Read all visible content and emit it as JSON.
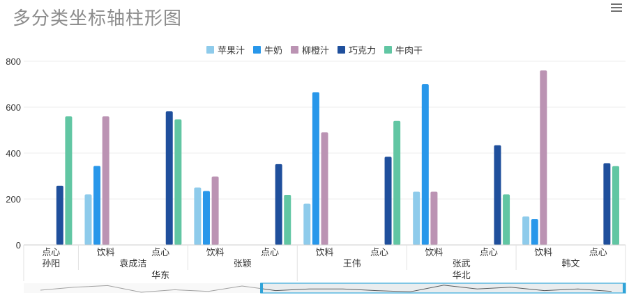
{
  "title": "多分类坐标轴柱形图",
  "menu_icon": "hamburger-menu-icon",
  "chart_data": {
    "type": "bar",
    "title": "多分类坐标轴柱形图",
    "ylim": [
      0,
      800
    ],
    "yticks": [
      0,
      200,
      400,
      600,
      800
    ],
    "grid": true,
    "legend_position": "top-center",
    "categories": [
      {
        "region": "华东",
        "person": "孙阳",
        "item": "点心"
      },
      {
        "region": "华东",
        "person": "袁成洁",
        "item": "饮料"
      },
      {
        "region": "华东",
        "person": "袁成洁",
        "item": "点心"
      },
      {
        "region": "华东",
        "person": "张颖",
        "item": "饮料"
      },
      {
        "region": "华东",
        "person": "张颖",
        "item": "点心"
      },
      {
        "region": "华北",
        "person": "王伟",
        "item": "饮料"
      },
      {
        "region": "华北",
        "person": "王伟",
        "item": "点心"
      },
      {
        "region": "华北",
        "person": "张武",
        "item": "饮料"
      },
      {
        "region": "华北",
        "person": "张武",
        "item": "点心"
      },
      {
        "region": "华北",
        "person": "韩文",
        "item": "饮料"
      },
      {
        "region": "华北",
        "person": "韩文",
        "item": "点心"
      }
    ],
    "series": [
      {
        "name": "苹果汁",
        "color": "#8ecbeb",
        "values": [
          0,
          220,
          0,
          250,
          0,
          180,
          0,
          232,
          0,
          124,
          0
        ]
      },
      {
        "name": "牛奶",
        "color": "#2897ea",
        "values": [
          0,
          344,
          0,
          235,
          0,
          665,
          0,
          700,
          0,
          112,
          0
        ]
      },
      {
        "name": "柳橙汁",
        "color": "#bb93b3",
        "values": [
          0,
          560,
          0,
          298,
          0,
          490,
          0,
          232,
          0,
          760,
          0
        ]
      },
      {
        "name": "巧克力",
        "color": "#1f4f9c",
        "values": [
          258,
          0,
          582,
          0,
          352,
          0,
          384,
          0,
          434,
          0,
          356
        ]
      },
      {
        "name": "牛肉干",
        "color": "#61c6a3",
        "values": [
          560,
          0,
          547,
          0,
          218,
          0,
          540,
          0,
          220,
          0,
          343
        ]
      }
    ]
  },
  "navigator": {
    "values": [
      25,
      60,
      80,
      0,
      30,
      10,
      75,
      20,
      40,
      40,
      20,
      5,
      85,
      40,
      60,
      20,
      40,
      10
    ],
    "range_start": 0.394,
    "range_end": 1.0
  }
}
